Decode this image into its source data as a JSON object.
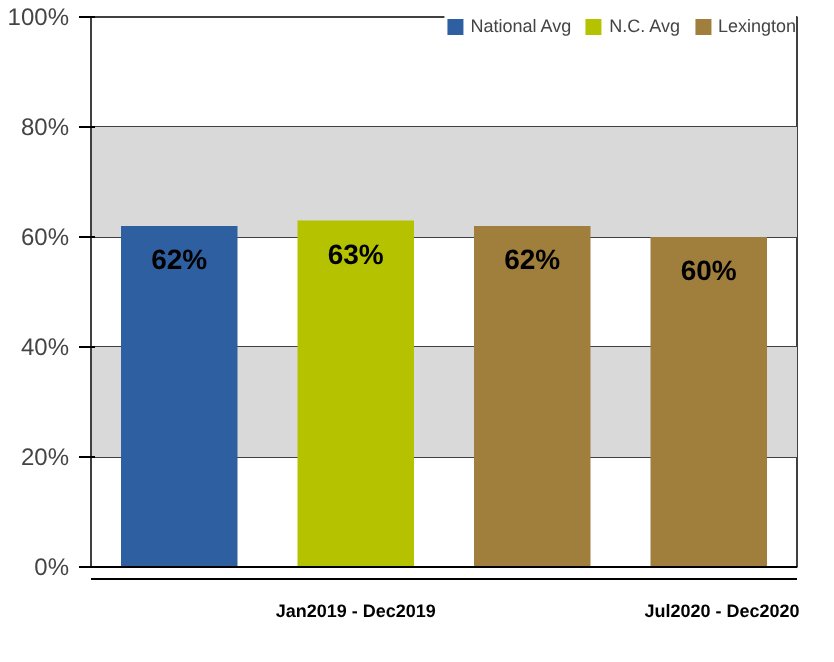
{
  "chart_data": {
    "type": "bar",
    "categories": [
      null,
      null,
      null,
      null
    ],
    "series": [
      {
        "name": "National Avg",
        "color": "#2e5fa0",
        "values": [
          62,
          null,
          null,
          null
        ],
        "value_labels": [
          "62%",
          null,
          null,
          null
        ]
      },
      {
        "name": "N.C. Avg",
        "color": "#b5c200",
        "values": [
          null,
          63,
          null,
          null
        ],
        "value_labels": [
          null,
          "63%",
          null,
          null
        ]
      },
      {
        "name": "Lexington",
        "color": "#a07e3c",
        "values": [
          null,
          null,
          62,
          60
        ],
        "value_labels": [
          null,
          null,
          "62%",
          "60%"
        ]
      }
    ],
    "ylim": [
      0,
      100
    ],
    "yticks": [
      {
        "value": 0,
        "label": "0%"
      },
      {
        "value": 20,
        "label": "20%"
      },
      {
        "value": 40,
        "label": "40%"
      },
      {
        "value": 60,
        "label": "60%"
      },
      {
        "value": 80,
        "label": "80%"
      },
      {
        "value": 100,
        "label": "100%"
      }
    ],
    "bands": [
      {
        "axis": "y",
        "from": 20,
        "to": 40,
        "color": "#d9d9d9"
      },
      {
        "axis": "y",
        "from": 60,
        "to": 80,
        "color": "#d9d9d9"
      }
    ],
    "grid": "y",
    "legend": "top right",
    "annotations": [
      "Jan2019 - Dec2019",
      "Jul2020 - Dec2020"
    ]
  }
}
